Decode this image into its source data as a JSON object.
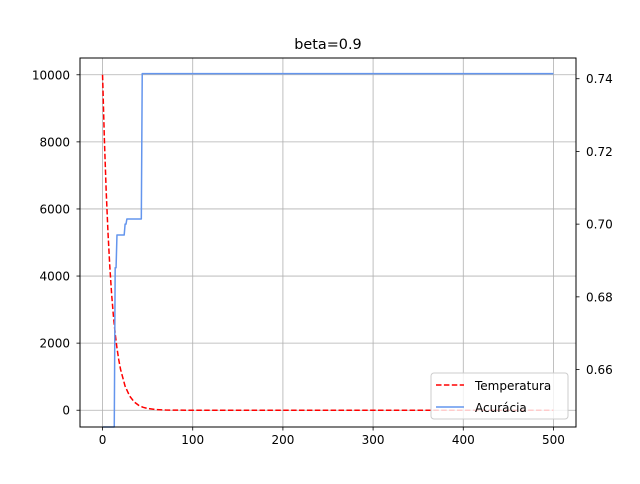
{
  "chart_data": {
    "type": "line",
    "title": "beta=0.9",
    "xlabel": "",
    "ylabel_left": "",
    "ylabel_right": "",
    "x_ticks": [
      0,
      100,
      200,
      300,
      400,
      500
    ],
    "x_tick_labels": [
      "0",
      "100",
      "200",
      "300",
      "400",
      "500"
    ],
    "xlim": [
      -25,
      525
    ],
    "y_left_ticks": [
      0,
      2000,
      4000,
      6000,
      8000,
      10000
    ],
    "y_left_tick_labels": [
      "0",
      "2000",
      "4000",
      "6000",
      "8000",
      "10000"
    ],
    "y_left_lim": [
      -500,
      10500
    ],
    "y_right_ticks": [
      0.66,
      0.68,
      0.7,
      0.72,
      0.74
    ],
    "y_right_tick_labels": [
      "0.66",
      "0.68",
      "0.70",
      "0.72",
      "0.74"
    ],
    "y_right_lim": [
      0.6442,
      0.7457
    ],
    "grid": true,
    "legend_position": "lower-right",
    "series": [
      {
        "name": "Temperatura",
        "axis": "left",
        "style": "dashed",
        "color": "#ff0000",
        "x": [
          0,
          2,
          4,
          6,
          8,
          10,
          12,
          14,
          16,
          18,
          20,
          25,
          30,
          35,
          40,
          45,
          50,
          60,
          70,
          80,
          100,
          150,
          200,
          300,
          400,
          500
        ],
        "values": [
          10000,
          8100,
          6561,
          5314,
          4305,
          3487,
          2824,
          2288,
          1853,
          1501,
          1216,
          718,
          424,
          250,
          148,
          87,
          52,
          18,
          6,
          2,
          0,
          0,
          0,
          0,
          0,
          0
        ]
      },
      {
        "name": "Acurácia",
        "axis": "right",
        "style": "solid",
        "color": "#6495ed",
        "x": [
          0,
          13,
          14,
          15,
          16,
          17,
          24,
          25,
          26,
          27,
          42,
          43,
          44,
          500
        ],
        "values": [
          0.6442,
          0.6442,
          0.688,
          0.688,
          0.697,
          0.697,
          0.697,
          0.7,
          0.7,
          0.7014,
          0.7014,
          0.7014,
          0.7414,
          0.7414
        ]
      }
    ]
  },
  "colors": {
    "grid": "#b0b0b0",
    "axes": "#000000",
    "legend_border": "#cccccc"
  }
}
